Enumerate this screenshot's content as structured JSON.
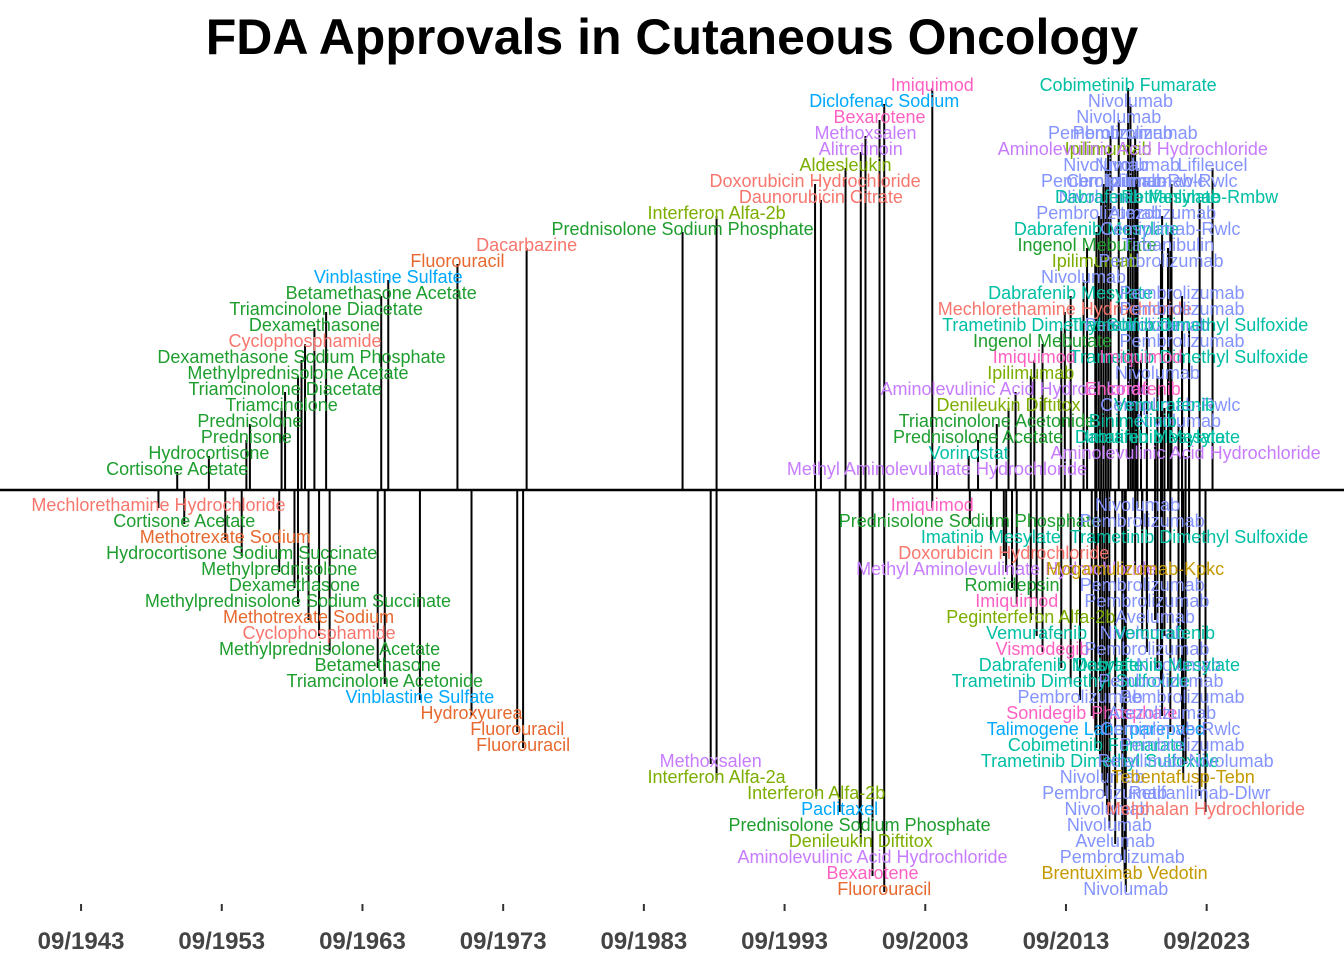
{
  "chart_data": {
    "type": "timeline",
    "title": "FDA Approvals in Cutaneous Oncology",
    "xlabel": "",
    "ylabel": "",
    "x_range": [
      "1942-09",
      "2028-09"
    ],
    "x_ticks": [
      "09/1943",
      "09/1953",
      "09/1963",
      "09/1973",
      "09/1983",
      "09/1993",
      "09/2003",
      "09/2013",
      "09/2023"
    ],
    "grid": false,
    "legend": "none",
    "colors": {
      "red": "#F8766D",
      "orange": "#E7692F",
      "olive": "#7CAE00",
      "green": "#00A53B",
      "dkgreen": "#1E9E2E",
      "teal": "#00BFA4",
      "blue": "#00A9FF",
      "periwinkle": "#8494FF",
      "purple": "#C77CFF",
      "pink": "#FF61C3",
      "gold": "#C49A00",
      "axis": "#000000"
    },
    "events": [
      {
        "drug": "Mechlorethamine Hydrochloride",
        "date": "1949-03",
        "level": -1,
        "color": "#F8766D"
      },
      {
        "drug": "Cortisone Acetate",
        "date": "1950-07",
        "level": 1,
        "color": "#1E9E2E"
      },
      {
        "drug": "Cortisone Acetate",
        "date": "1951-01",
        "level": -2,
        "color": "#1E9E2E"
      },
      {
        "drug": "Hydrocortisone",
        "date": "1952-10",
        "level": 2,
        "color": "#1E9E2E"
      },
      {
        "drug": "Methotrexate Sodium",
        "date": "1953-12",
        "level": -3,
        "color": "#E7692F"
      },
      {
        "drug": "Hydrocortisone Sodium Succinate",
        "date": "1955-02",
        "level": -4,
        "color": "#1E9E2E"
      },
      {
        "drug": "Prednisone",
        "date": "1955-06",
        "level": 3,
        "color": "#1E9E2E"
      },
      {
        "drug": "Prednisolone",
        "date": "1955-09",
        "level": 4,
        "color": "#1E9E2E"
      },
      {
        "drug": "Triamcinolone",
        "date": "1957-12",
        "level": 5,
        "color": "#1E9E2E"
      },
      {
        "drug": "Methylprednisolone",
        "date": "1957-10",
        "level": -5,
        "color": "#1E9E2E"
      },
      {
        "drug": "Triamcinolone Diacetate",
        "date": "1958-03",
        "level": 6,
        "color": "#1E9E2E"
      },
      {
        "drug": "Methylprednisolone Acetate",
        "date": "1959-02",
        "level": 7,
        "color": "#1E9E2E"
      },
      {
        "drug": "Dexamethasone",
        "date": "1958-11",
        "level": -6,
        "color": "#1E9E2E"
      },
      {
        "drug": "Dexamethasone Sodium Phosphate",
        "date": "1959-05",
        "level": 8,
        "color": "#1E9E2E"
      },
      {
        "drug": "Methylprednisolone Sodium Succinate",
        "date": "1959-02",
        "level": -7,
        "color": "#1E9E2E"
      },
      {
        "drug": "Cyclophosphamide",
        "date": "1959-08",
        "level": 9,
        "color": "#F8766D"
      },
      {
        "drug": "Methotrexate Sodium",
        "date": "1959-11",
        "level": -8,
        "color": "#E7692F"
      },
      {
        "drug": "Dexamethasone",
        "date": "1960-04",
        "level": 10,
        "color": "#1E9E2E"
      },
      {
        "drug": "Cyclophosphamide",
        "date": "1960-08",
        "level": -9,
        "color": "#F8766D"
      },
      {
        "drug": "Triamcinolone Diacetate",
        "date": "1961-02",
        "level": 11,
        "color": "#1E9E2E"
      },
      {
        "drug": "Methylprednisolone Acetate",
        "date": "1961-05",
        "level": -10,
        "color": "#1E9E2E"
      },
      {
        "drug": "Betamethasone",
        "date": "1964-10",
        "level": -11,
        "color": "#1E9E2E"
      },
      {
        "drug": "Betamethasone Acetate",
        "date": "1965-01",
        "level": 12,
        "color": "#1E9E2E"
      },
      {
        "drug": "Triamcinolone Acetonide",
        "date": "1965-04",
        "level": -12,
        "color": "#1E9E2E"
      },
      {
        "drug": "Vinblastine Sulfate",
        "date": "1965-07",
        "level": 13,
        "color": "#00A9FF"
      },
      {
        "drug": "Vinblastine Sulfate",
        "date": "1967-10",
        "level": -13,
        "color": "#00A9FF"
      },
      {
        "drug": "Fluorouracil",
        "date": "1970-06",
        "level": 14,
        "color": "#E7692F"
      },
      {
        "drug": "Hydroxyurea",
        "date": "1971-06",
        "level": -14,
        "color": "#E7692F"
      },
      {
        "drug": "Fluorouracil",
        "date": "1974-09",
        "level": -15,
        "color": "#E7692F"
      },
      {
        "drug": "Dacarbazine",
        "date": "1975-05",
        "level": 15,
        "color": "#F8766D"
      },
      {
        "drug": "Fluorouracil",
        "date": "1975-02",
        "level": -16,
        "color": "#E7692F"
      },
      {
        "drug": "Prednisolone Sodium Phosphate",
        "date": "1986-06",
        "level": 16,
        "color": "#1E9E2E"
      },
      {
        "drug": "Methoxsalen",
        "date": "1988-06",
        "level": -17,
        "color": "#C77CFF"
      },
      {
        "drug": "Interferon Alfa-2a",
        "date": "1988-11",
        "level": -18,
        "color": "#7CAE00"
      },
      {
        "drug": "Interferon Alfa-2b",
        "date": "1988-11",
        "level": 17,
        "color": "#7CAE00"
      },
      {
        "drug": "Interferon Alfa-2b",
        "date": "1995-12",
        "level": -19,
        "color": "#7CAE00"
      },
      {
        "drug": "Daunorubicin Citrate",
        "date": "1996-04",
        "level": 18,
        "color": "#F8766D"
      },
      {
        "drug": "Paclitaxel",
        "date": "1997-08",
        "level": -20,
        "color": "#00A9FF"
      },
      {
        "drug": "Doxorubicin Hydrochloride",
        "date": "1995-11",
        "level": 19,
        "color": "#F8766D"
      },
      {
        "drug": "Aldesleukin",
        "date": "1998-01",
        "level": 20,
        "color": "#7CAE00"
      },
      {
        "drug": "Prednisolone Sodium Phosphate",
        "date": "1999-01",
        "level": -21,
        "color": "#1E9E2E"
      },
      {
        "drug": "Denileukin Diftitox",
        "date": "1999-02",
        "level": -22,
        "color": "#7CAE00"
      },
      {
        "drug": "Alitretinoin",
        "date": "1999-02",
        "level": 21,
        "color": "#C77CFF"
      },
      {
        "drug": "Aminolevulinic Acid Hydrochloride",
        "date": "1999-12",
        "level": -23,
        "color": "#C77CFF"
      },
      {
        "drug": "Methoxsalen",
        "date": "1999-06",
        "level": 22,
        "color": "#C77CFF"
      },
      {
        "drug": "Bexarotene",
        "date": "1999-12",
        "level": -24,
        "color": "#FF61C3"
      },
      {
        "drug": "Bexarotene",
        "date": "2000-06",
        "level": 23,
        "color": "#FF61C3"
      },
      {
        "drug": "Fluorouracil",
        "date": "2000-10",
        "level": -25,
        "color": "#E7692F"
      },
      {
        "drug": "Diclofenac Sodium",
        "date": "2000-10",
        "level": 24,
        "color": "#00A9FF"
      },
      {
        "drug": "Imiquimod",
        "date": "2004-03",
        "level": 25,
        "color": "#FF61C3"
      },
      {
        "drug": "Methyl Aminolevulinate Hydrochloride",
        "date": "2004-07",
        "level": 1,
        "color": "#C77CFF"
      },
      {
        "drug": "Imiquimod",
        "date": "2004-03",
        "level": -1,
        "color": "#FF61C3"
      },
      {
        "drug": "Vorinostat",
        "date": "2006-10",
        "level": 2,
        "color": "#00BFA4"
      },
      {
        "drug": "Prednisolone Sodium Phosphate",
        "date": "2006-11",
        "level": -2,
        "color": "#1E9E2E"
      },
      {
        "drug": "Prednisolone Acetate",
        "date": "2007-06",
        "level": 3,
        "color": "#1E9E2E"
      },
      {
        "drug": "Imatinib Mesylate",
        "date": "2008-05",
        "level": -3,
        "color": "#00BFA4"
      },
      {
        "drug": "Triamcinolone Acetonide",
        "date": "2008-10",
        "level": 4,
        "color": "#1E9E2E"
      },
      {
        "drug": "Doxorubicin Hydrochloride",
        "date": "2009-04",
        "level": -4,
        "color": "#F8766D"
      },
      {
        "drug": "Denileukin Diftitox",
        "date": "2009-08",
        "level": 5,
        "color": "#7CAE00"
      },
      {
        "drug": "Methyl Aminolevulinate Hydrochloride",
        "date": "2009-06",
        "level": -5,
        "color": "#C77CFF"
      },
      {
        "drug": "Aminolevulinic Acid Hydrochloride",
        "date": "2010-02",
        "level": 6,
        "color": "#C77CFF"
      },
      {
        "drug": "Romidepsin",
        "date": "2009-11",
        "level": -6,
        "color": "#1E9E2E"
      },
      {
        "drug": "Ipilimumab",
        "date": "2011-03",
        "level": 7,
        "color": "#7CAE00"
      },
      {
        "drug": "Imiquimod",
        "date": "2010-03",
        "level": -7,
        "color": "#FF61C3"
      },
      {
        "drug": "Imiquimod",
        "date": "2011-06",
        "level": 8,
        "color": "#FF61C3"
      },
      {
        "drug": "Peginterferon Alfa-2b",
        "date": "2011-03",
        "level": -8,
        "color": "#7CAE00"
      },
      {
        "drug": "Ingenol Mebutate",
        "date": "2012-01",
        "level": 9,
        "color": "#1E9E2E"
      },
      {
        "drug": "Vemurafenib",
        "date": "2011-08",
        "level": -9,
        "color": "#00BFA4"
      },
      {
        "drug": "Trametinib Dimethyl Sulfoxide",
        "date": "2013-05",
        "level": 10,
        "color": "#00BFA4"
      },
      {
        "drug": "Vismodegib",
        "date": "2012-01",
        "level": -10,
        "color": "#FF61C3"
      },
      {
        "drug": "Mechlorethamine Hydrochloride",
        "date": "2013-08",
        "level": 11,
        "color": "#F8766D"
      },
      {
        "drug": "Dabrafenib Mesylate",
        "date": "2013-05",
        "level": -11,
        "color": "#00BFA4"
      },
      {
        "drug": "Dabrafenib Mesylate",
        "date": "2014-01",
        "level": 12,
        "color": "#00BFA4"
      },
      {
        "drug": "Trametinib Dimethyl Sulfoxide",
        "date": "2014-01",
        "level": -12,
        "color": "#00BFA4"
      },
      {
        "drug": "Nivolumab",
        "date": "2014-12",
        "level": 13,
        "color": "#8494FF"
      },
      {
        "drug": "Pembrolizumab",
        "date": "2014-09",
        "level": -13,
        "color": "#8494FF"
      },
      {
        "drug": "Ipilimumab",
        "date": "2015-10",
        "level": 14,
        "color": "#7CAE00"
      },
      {
        "drug": "Sonidegib Phosphate",
        "date": "2015-07",
        "level": -14,
        "color": "#FF61C3"
      },
      {
        "drug": "Ingenol Mebutate",
        "date": "2015-03",
        "level": 15,
        "color": "#1E9E2E"
      },
      {
        "drug": "Talimogene Laherparepvec",
        "date": "2015-10",
        "level": -15,
        "color": "#00A9FF"
      },
      {
        "drug": "Dabrafenib Mesylate",
        "date": "2015-11",
        "level": 16,
        "color": "#00BFA4"
      },
      {
        "drug": "Cobimetinib Fumarate",
        "date": "2015-11",
        "level": -16,
        "color": "#00BFA4"
      },
      {
        "drug": "Pembrolizumab",
        "date": "2016-01",
        "level": 17,
        "color": "#8494FF"
      },
      {
        "drug": "Trametinib Dimethyl Sulfoxide",
        "date": "2016-02",
        "level": -17,
        "color": "#00BFA4"
      },
      {
        "drug": "Nivolumab",
        "date": "2016-03",
        "level": 18,
        "color": "#8494FF"
      },
      {
        "drug": "Nivolumab",
        "date": "2016-04",
        "level": -18,
        "color": "#8494FF"
      },
      {
        "drug": "Pembrolizumab",
        "date": "2016-05",
        "level": 19,
        "color": "#8494FF"
      },
      {
        "drug": "Pembrolizumab",
        "date": "2016-06",
        "level": -19,
        "color": "#8494FF"
      },
      {
        "drug": "Nivolumab",
        "date": "2016-07",
        "level": 20,
        "color": "#8494FF"
      },
      {
        "drug": "Nivolumab",
        "date": "2016-08",
        "level": -20,
        "color": "#8494FF"
      },
      {
        "drug": "Ipilimumab",
        "date": "2016-09",
        "level": 21,
        "color": "#7CAE00"
      },
      {
        "drug": "Nivolumab",
        "date": "2016-10",
        "level": -21,
        "color": "#8494FF"
      },
      {
        "drug": "Pembrolizumab",
        "date": "2016-11",
        "level": 22,
        "color": "#8494FF"
      },
      {
        "drug": "Avelumab",
        "date": "2017-03",
        "level": -22,
        "color": "#8494FF"
      },
      {
        "drug": "Nivolumab",
        "date": "2017-06",
        "level": 23,
        "color": "#8494FF"
      },
      {
        "drug": "Pembrolizumab",
        "date": "2017-09",
        "level": -23,
        "color": "#8494FF"
      },
      {
        "drug": "Brentuximab Vedotin",
        "date": "2017-11",
        "level": -24,
        "color": "#C49A00"
      },
      {
        "drug": "Nivolumab",
        "date": "2017-12",
        "level": -25,
        "color": "#8494FF"
      },
      {
        "drug": "Cobimetinib Fumarate",
        "date": "2018-02",
        "level": 25,
        "color": "#00BFA4"
      },
      {
        "drug": "Nivolumab",
        "date": "2018-04",
        "level": 24,
        "color": "#8494FF"
      },
      {
        "drug": "Aminolevulinic Acid Hydrochloride",
        "date": "2018-06",
        "level": 21,
        "color": "#C77CFF"
      },
      {
        "drug": "Pembrolizumab",
        "date": "2018-08",
        "level": 22,
        "color": "#8494FF"
      },
      {
        "drug": "Nivolumab",
        "date": "2018-10",
        "level": 20,
        "color": "#8494FF"
      },
      {
        "drug": "Lifileucel",
        "date": "2024-02",
        "level": 20,
        "color": "#8494FF"
      },
      {
        "drug": "Cemiplimab-Rwlc",
        "date": "2018-09",
        "level": 19,
        "color": "#8494FF"
      },
      {
        "drug": "Dabrafenib Mesylate",
        "date": "2018-10",
        "level": 18,
        "color": "#00BFA4"
      },
      {
        "drug": "Retifanlimab-Dlwr",
        "date": "2023-03",
        "level": -19,
        "color": "#8494FF"
      },
      {
        "drug": "Cemiplimab-Rwlc",
        "date": "2021-02",
        "level": -15,
        "color": "#8494FF"
      },
      {
        "drug": "Tebentafusp-Tebn",
        "date": "2022-01",
        "level": -18,
        "color": "#C49A00"
      },
      {
        "drug": "Relatlimab-Nivolumab",
        "date": "2022-03",
        "level": -17,
        "color": "#8494FF"
      },
      {
        "drug": "Melphalan Hydrochloride",
        "date": "2023-08",
        "level": -20,
        "color": "#F8766D"
      },
      {
        "drug": "Pembrolizumab",
        "date": "2021-12",
        "level": -16,
        "color": "#8494FF"
      },
      {
        "drug": "Tirbanibulin",
        "date": "2020-12",
        "level": 15,
        "color": "#8494FF"
      },
      {
        "drug": "Nivolumab",
        "date": "2021-09",
        "level": 4,
        "color": "#8494FF"
      },
      {
        "drug": "Trametinib Dimethyl Sulfoxide",
        "date": "2022-06",
        "level": 8,
        "color": "#00BFA4"
      },
      {
        "drug": "Aminolevulinic Acid Hydrochloride",
        "date": "2022-03",
        "level": 2,
        "color": "#C77CFF"
      },
      {
        "drug": "Mogamulizumab-Kpkc",
        "date": "2018-08",
        "level": -5,
        "color": "#C49A00"
      },
      {
        "drug": "Trametinib Dimethyl Sulfoxide",
        "date": "2022-06",
        "level": -3,
        "color": "#00BFA4"
      },
      {
        "drug": "Cemiplimab-Rwlc",
        "date": "2021-02",
        "level": 5,
        "color": "#8494FF"
      },
      {
        "drug": "Binimetinib",
        "date": "2018-06",
        "level": 4,
        "color": "#00BFA4"
      },
      {
        "drug": "Encorafenib",
        "date": "2018-06",
        "level": 6,
        "color": "#FF61C3"
      },
      {
        "drug": "Dabrafenib Mesylate",
        "date": "2020-03",
        "level": 3,
        "color": "#00BFA4"
      },
      {
        "drug": "Pembrolizumab",
        "date": "2019-02",
        "level": -6,
        "color": "#8494FF"
      },
      {
        "drug": "Pembrolizumab",
        "date": "2019-06",
        "level": -7,
        "color": "#8494FF"
      },
      {
        "drug": "Avelumab",
        "date": "2020-01",
        "level": -8,
        "color": "#8494FF"
      },
      {
        "drug": "Atezolizumab",
        "date": "2020-07",
        "level": -14,
        "color": "#8494FF"
      },
      {
        "drug": "Pembrolizumab",
        "date": "2020-06",
        "level": 14,
        "color": "#8494FF"
      },
      {
        "drug": "Ipilimumab-Rwlc",
        "date": "2021-03",
        "level": 19,
        "color": "#8494FF"
      },
      {
        "drug": "Retifanlimab-Rmbw",
        "date": "2023-03",
        "level": 18,
        "color": "#00BFA4"
      },
      {
        "drug": "Atezolizumab",
        "date": "2020-07",
        "level": 17,
        "color": "#8494FF"
      },
      {
        "drug": "Pembrolizumab",
        "date": "2021-12",
        "level": 12,
        "color": "#8494FF"
      },
      {
        "drug": "Pembrolizumab",
        "date": "2021-12",
        "level": 11,
        "color": "#8494FF"
      },
      {
        "drug": "Nivolumab",
        "date": "2020-03",
        "level": 7,
        "color": "#8494FF"
      },
      {
        "drug": "Cemiplimab-Rwlc",
        "date": "2021-02",
        "level": 16,
        "color": "#8494FF"
      },
      {
        "drug": "Pembrolizumab",
        "date": "2019-06",
        "level": 10,
        "color": "#8494FF"
      },
      {
        "drug": "Nivolumab",
        "date": "2018-10",
        "level": -1,
        "color": "#8494FF"
      },
      {
        "drug": "Nivolumab",
        "date": "2019-02",
        "level": -9,
        "color": "#8494FF"
      },
      {
        "drug": "Pembrolizumab",
        "date": "2019-06",
        "level": -10,
        "color": "#8494FF"
      },
      {
        "drug": "Nivolumab",
        "date": "2021-09",
        "level": -11,
        "color": "#8494FF"
      },
      {
        "drug": "Pembrolizumab",
        "date": "2020-06",
        "level": -12,
        "color": "#8494FF"
      },
      {
        "drug": "Pembrolizumab",
        "date": "2021-12",
        "level": -13,
        "color": "#8494FF"
      },
      {
        "drug": "Pembrolizumab",
        "date": "2019-02",
        "level": -2,
        "color": "#8494FF"
      },
      {
        "drug": "Imiquimod",
        "date": "2019-01",
        "level": 8,
        "color": "#FF61C3"
      },
      {
        "drug": "Pembrolizumab",
        "date": "2021-12",
        "level": 9,
        "color": "#8494FF"
      },
      {
        "drug": "Vemurafenib",
        "date": "2020-09",
        "level": 5,
        "color": "#00BFA4"
      },
      {
        "drug": "Imatinib Mesylate",
        "date": "2020-01",
        "level": 3,
        "color": "#00BFA4"
      },
      {
        "drug": "Vemurafenib",
        "date": "2020-09",
        "level": -9,
        "color": "#00BFA4"
      },
      {
        "drug": "Dabrafenib Mesylate",
        "date": "2020-03",
        "level": -11,
        "color": "#00BFA4"
      },
      {
        "drug": "Trametinib Dimethyl Sulfoxide",
        "date": "2022-06",
        "level": 10,
        "color": "#00BFA4"
      }
    ]
  }
}
